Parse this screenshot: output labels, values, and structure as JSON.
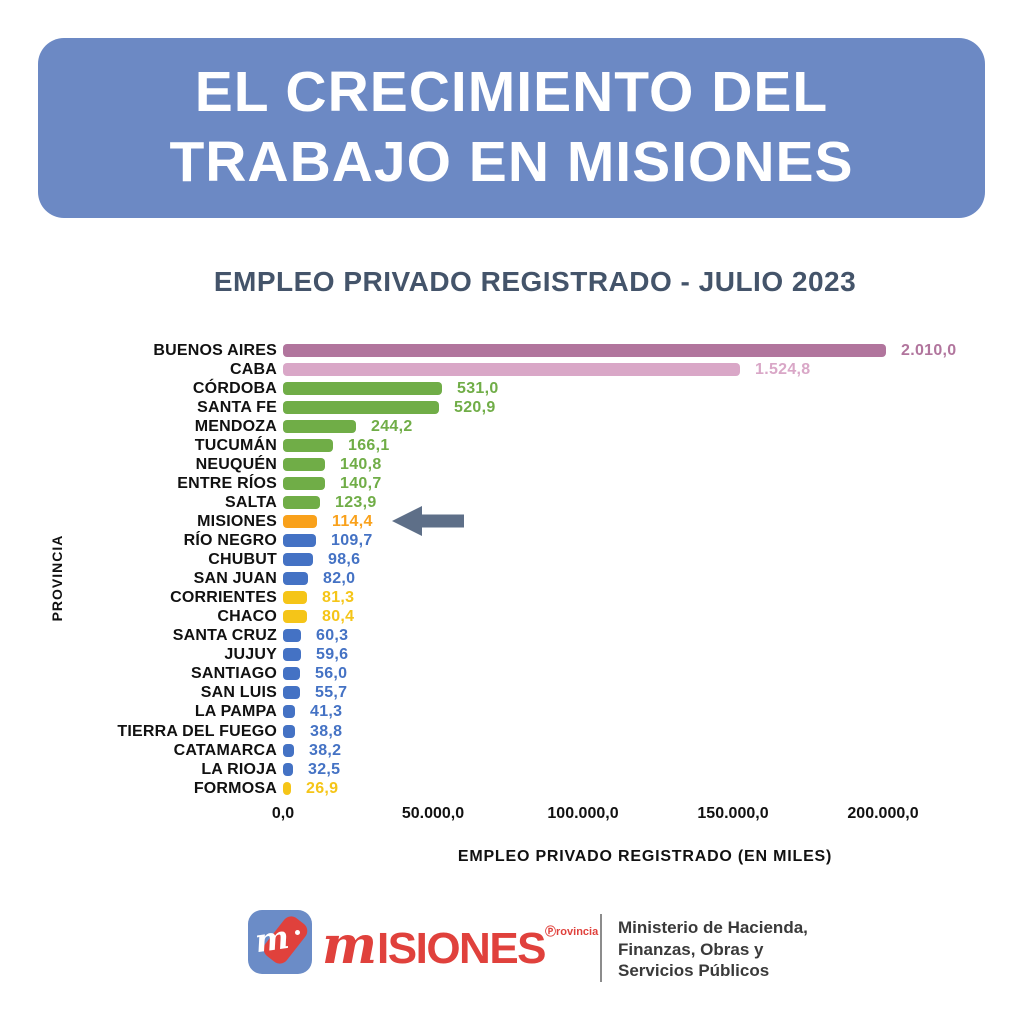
{
  "header": {
    "line1": "EL CRECIMIENTO DEL",
    "line2": "TRABAJO EN MISIONES",
    "bg_color": "#6c89c4",
    "text_color": "#ffffff"
  },
  "chart_data": {
    "type": "bar",
    "orientation": "horizontal",
    "title": "EMPLEO PRIVADO REGISTRADO - JULIO 2023",
    "xlabel": "EMPLEO PRIVADO REGISTRADO (EN MILES)",
    "ylabel": "PROVINCIA",
    "x_ticks": [
      "0,0",
      "50.000,0",
      "100.000,0",
      "150.000,0",
      "200.000,0"
    ],
    "xlim": [
      0,
      200000
    ],
    "grid": false,
    "legend": false,
    "max_value": 2010.0,
    "bars": [
      {
        "label": "BUENOS AIRES",
        "value": 2010.0,
        "value_label": "2.010,0",
        "color": "#b1759d"
      },
      {
        "label": "CABA",
        "value": 1524.8,
        "value_label": "1.524,8",
        "color": "#d9a7c7"
      },
      {
        "label": "CÓRDOBA",
        "value": 531.0,
        "value_label": "531,0",
        "color": "#70ad47"
      },
      {
        "label": "SANTA FE",
        "value": 520.9,
        "value_label": "520,9",
        "color": "#70ad47"
      },
      {
        "label": "MENDOZA",
        "value": 244.2,
        "value_label": "244,2",
        "color": "#70ad47"
      },
      {
        "label": "TUCUMÁN",
        "value": 166.1,
        "value_label": "166,1",
        "color": "#70ad47"
      },
      {
        "label": "NEUQUÉN",
        "value": 140.8,
        "value_label": "140,8",
        "color": "#70ad47"
      },
      {
        "label": "ENTRE RÍOS",
        "value": 140.7,
        "value_label": "140,7",
        "color": "#70ad47"
      },
      {
        "label": "SALTA",
        "value": 123.9,
        "value_label": "123,9",
        "color": "#70ad47"
      },
      {
        "label": "MISIONES",
        "value": 114.4,
        "value_label": "114,4",
        "color": "#f9a11b",
        "highlight": true
      },
      {
        "label": "RÍO NEGRO",
        "value": 109.7,
        "value_label": "109,7",
        "color": "#4472c4"
      },
      {
        "label": "CHUBUT",
        "value": 98.6,
        "value_label": "98,6",
        "color": "#4472c4"
      },
      {
        "label": "SAN JUAN",
        "value": 82.0,
        "value_label": "82,0",
        "color": "#4472c4"
      },
      {
        "label": "CORRIENTES",
        "value": 81.3,
        "value_label": "81,3",
        "color": "#f5c518"
      },
      {
        "label": "CHACO",
        "value": 80.4,
        "value_label": "80,4",
        "color": "#f5c518"
      },
      {
        "label": "SANTA CRUZ",
        "value": 60.3,
        "value_label": "60,3",
        "color": "#4472c4"
      },
      {
        "label": "JUJUY",
        "value": 59.6,
        "value_label": "59,6",
        "color": "#4472c4"
      },
      {
        "label": "SANTIAGO",
        "value": 56.0,
        "value_label": "56,0",
        "color": "#4472c4"
      },
      {
        "label": "SAN LUIS",
        "value": 55.7,
        "value_label": "55,7",
        "color": "#4472c4"
      },
      {
        "label": "LA PAMPA",
        "value": 41.3,
        "value_label": "41,3",
        "color": "#4472c4"
      },
      {
        "label": "TIERRA DEL FUEGO",
        "value": 38.8,
        "value_label": "38,8",
        "color": "#4472c4"
      },
      {
        "label": "CATAMARCA",
        "value": 38.2,
        "value_label": "38,2",
        "color": "#4472c4"
      },
      {
        "label": "LA RIOJA",
        "value": 32.5,
        "value_label": "32,5",
        "color": "#4472c4"
      },
      {
        "label": "FORMOSA",
        "value": 26.9,
        "value_label": "26,9",
        "color": "#f5c518"
      }
    ],
    "annotation": {
      "type": "arrow-left",
      "target": "MISIONES",
      "color": "#5e6f88"
    }
  },
  "footer": {
    "logo_monogram": "m",
    "brand": "MISIONES",
    "brand_display": {
      "initial": "m",
      "rest": "ISIONES",
      "superscript": "Ⓟrovincia"
    },
    "brand_color": "#e0413c",
    "ministry_lines": [
      "Ministerio de Hacienda,",
      "Finanzas, Obras y",
      "Servicios Públicos"
    ]
  }
}
